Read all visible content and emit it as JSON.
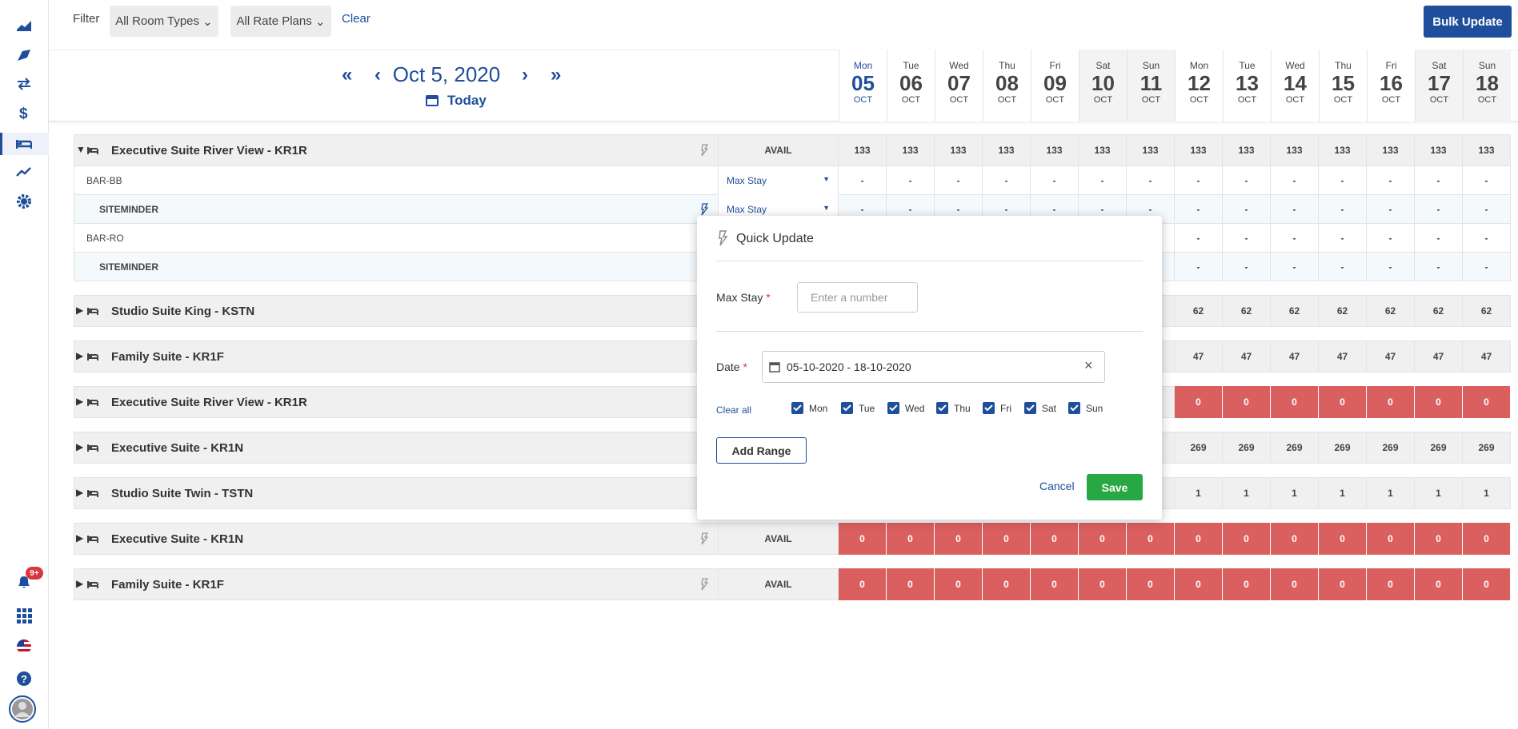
{
  "sidebar": {
    "notification_badge": "9+"
  },
  "filter": {
    "label": "Filter",
    "room_types": "All Room Types",
    "rate_plans": "All Rate Plans",
    "clear": "Clear",
    "bulk_update": "Bulk Update"
  },
  "header": {
    "date": "Oct 5, 2020",
    "today": "Today",
    "days": [
      {
        "dow": "Mon",
        "day": "05",
        "month": "OCT"
      },
      {
        "dow": "Tue",
        "day": "06",
        "month": "OCT"
      },
      {
        "dow": "Wed",
        "day": "07",
        "month": "OCT"
      },
      {
        "dow": "Thu",
        "day": "08",
        "month": "OCT"
      },
      {
        "dow": "Fri",
        "day": "09",
        "month": "OCT"
      },
      {
        "dow": "Sat",
        "day": "10",
        "month": "OCT"
      },
      {
        "dow": "Sun",
        "day": "11",
        "month": "OCT"
      },
      {
        "dow": "Mon",
        "day": "12",
        "month": "OCT"
      },
      {
        "dow": "Tue",
        "day": "13",
        "month": "OCT"
      },
      {
        "dow": "Wed",
        "day": "14",
        "month": "OCT"
      },
      {
        "dow": "Thu",
        "day": "15",
        "month": "OCT"
      },
      {
        "dow": "Fri",
        "day": "16",
        "month": "OCT"
      },
      {
        "dow": "Sat",
        "day": "17",
        "month": "OCT"
      },
      {
        "dow": "Sun",
        "day": "18",
        "month": "OCT"
      }
    ]
  },
  "rooms": [
    {
      "name": "Executive Suite River View - KR1R",
      "expanded": true,
      "metric": "AVAIL",
      "values": [
        133,
        133,
        133,
        133,
        133,
        133,
        133,
        133,
        133,
        133,
        133,
        133,
        133,
        133
      ],
      "rate_plans": [
        {
          "name": "BAR-BB",
          "channel": false,
          "selector": "Max Stay",
          "values": [
            "-",
            "-",
            "-",
            "-",
            "-",
            "-",
            "-",
            "-",
            "-",
            "-",
            "-",
            "-",
            "-",
            "-"
          ]
        },
        {
          "name": "SITEMINDER",
          "channel": true,
          "selector": "Max Stay",
          "values": [
            "-",
            "-",
            "-",
            "-",
            "-",
            "-",
            "-",
            "-",
            "-",
            "-",
            "-",
            "-",
            "-",
            "-"
          ]
        },
        {
          "name": "BAR-RO",
          "channel": false,
          "values": [
            null,
            null,
            null,
            null,
            null,
            null,
            null,
            "-",
            "-",
            "-",
            "-",
            "-",
            "-",
            "-"
          ]
        },
        {
          "name": "SITEMINDER",
          "channel": true,
          "values": [
            null,
            null,
            null,
            null,
            null,
            null,
            null,
            "-",
            "-",
            "-",
            "-",
            "-",
            "-",
            "-"
          ]
        }
      ]
    },
    {
      "name": "Studio Suite King - KSTN",
      "values": [
        null,
        null,
        null,
        null,
        null,
        null,
        null,
        62,
        62,
        62,
        62,
        62,
        62,
        62
      ]
    },
    {
      "name": "Family Suite - KR1F",
      "values": [
        null,
        null,
        null,
        null,
        null,
        null,
        null,
        47,
        47,
        47,
        47,
        47,
        47,
        47
      ]
    },
    {
      "name": "Executive Suite River View - KR1R",
      "cell_color": "#d9605f",
      "values": [
        null,
        null,
        null,
        null,
        null,
        null,
        null,
        0,
        0,
        0,
        0,
        0,
        0,
        0
      ]
    },
    {
      "name": "Executive Suite - KR1N",
      "values": [
        null,
        null,
        null,
        null,
        null,
        null,
        null,
        269,
        269,
        269,
        269,
        269,
        269,
        269
      ]
    },
    {
      "name": "Studio Suite Twin - TSTN",
      "values": [
        null,
        null,
        null,
        null,
        null,
        null,
        null,
        1,
        1,
        1,
        1,
        1,
        1,
        1
      ]
    },
    {
      "name": "Executive Suite - KR1N",
      "metric": "AVAIL",
      "cell_color": "#d9605f",
      "values": [
        0,
        0,
        0,
        0,
        0,
        0,
        0,
        0,
        0,
        0,
        0,
        0,
        0,
        0
      ]
    },
    {
      "name": "Family Suite - KR1F",
      "metric": "AVAIL",
      "cell_color": "#d9605f",
      "values": [
        0,
        0,
        0,
        0,
        0,
        0,
        0,
        0,
        0,
        0,
        0,
        0,
        0,
        0
      ]
    }
  ],
  "modal": {
    "title": "Quick Update",
    "max_stay_label": "Max Stay",
    "required": "*",
    "max_stay_placeholder": "Enter a number",
    "date_label": "Date",
    "date_value": "05-10-2020 - 18-10-2020",
    "clear_all": "Clear all",
    "weekdays": [
      "Mon",
      "Tue",
      "Wed",
      "Thu",
      "Fri",
      "Sat",
      "Sun"
    ],
    "add_range": "Add Range",
    "cancel": "Cancel",
    "save": "Save"
  }
}
